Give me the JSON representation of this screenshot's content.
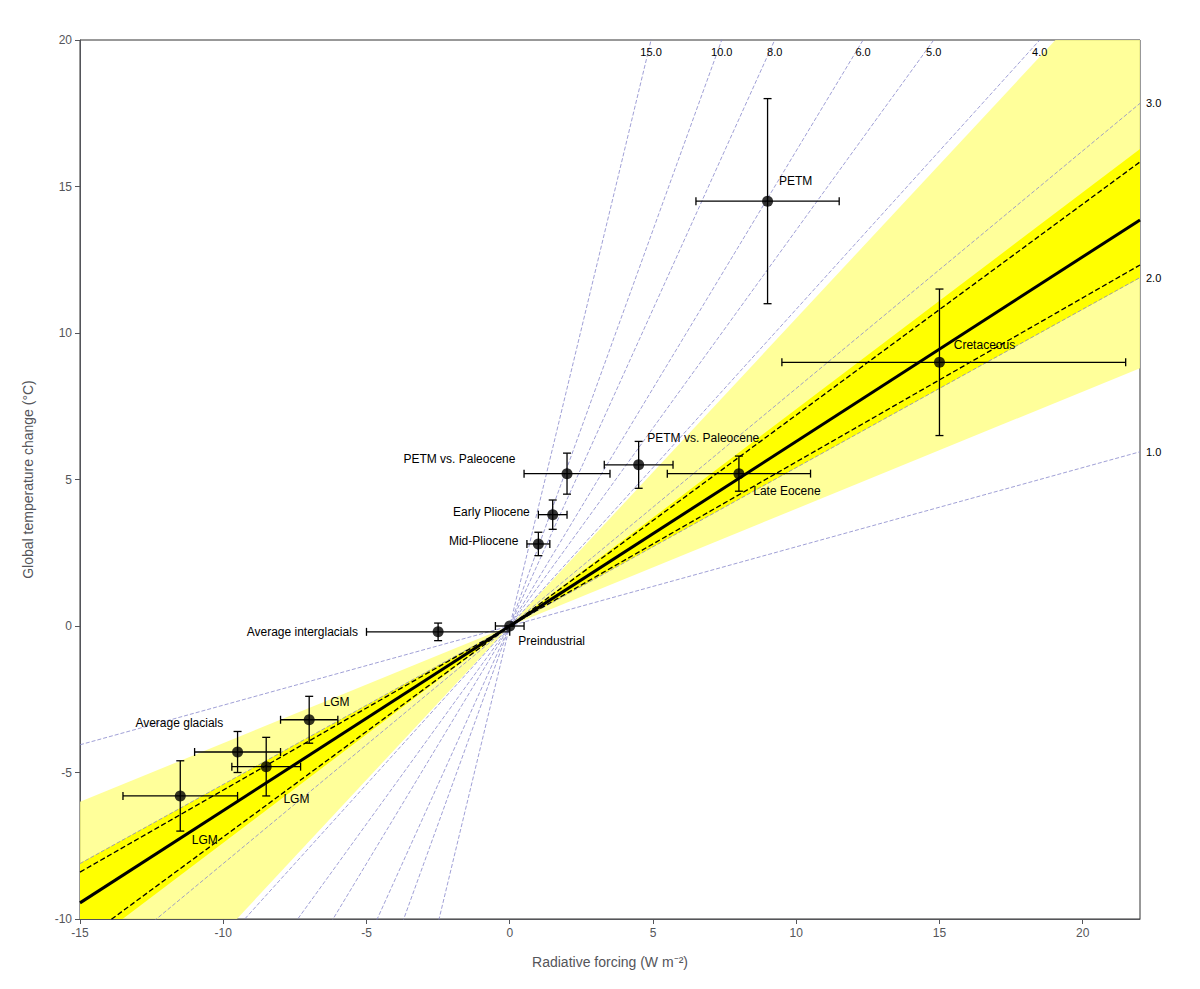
{
  "chart_data": {
    "type": "scatter",
    "xlabel": "Radiative forcing (W m⁻²)",
    "ylabel": "Global temperature change (°C)",
    "xlim": [
      -15,
      22
    ],
    "ylim": [
      -10,
      20
    ],
    "xticks": [
      -15,
      -10,
      -5,
      0,
      5,
      10,
      15,
      20
    ],
    "yticks": [
      -10,
      -5,
      0,
      5,
      10,
      15,
      20
    ],
    "grid": false,
    "marker": "circle",
    "color": "#000000",
    "bands": [
      {
        "lo": 0.4,
        "hi": 1.05,
        "color": "#ffff88"
      },
      {
        "lo": 0.54,
        "hi": 0.74,
        "color": "#ffff00"
      }
    ],
    "forcing_per_doubling": 3.7,
    "sensitivity_color": "#8888cc",
    "sensitivity_lines": [
      {
        "value": 15.0,
        "label": "15.0"
      },
      {
        "value": 10.0,
        "label": "10.0"
      },
      {
        "value": 8.0,
        "label": "8.0"
      },
      {
        "value": 6.0,
        "label": "6.0"
      },
      {
        "value": 5.0,
        "label": "5.0"
      },
      {
        "value": 4.0,
        "label": "4.0"
      },
      {
        "value": 3.0,
        "label": "3.0"
      },
      {
        "value": 2.0,
        "label": "2.0"
      },
      {
        "value": 1.0,
        "label": "1.0"
      }
    ],
    "lines": [
      {
        "slope": 0.56,
        "color": "#000000",
        "line_style": "dashed"
      },
      {
        "slope": 0.72,
        "color": "#000000",
        "line_style": "dashed"
      },
      {
        "slope": 0.63,
        "color": "#000000",
        "line_style": "solid"
      }
    ],
    "points": [
      {
        "x": 9.0,
        "y": 14.5,
        "label": "PETM",
        "xerr_lo": 2.5,
        "xerr_hi": 2.5,
        "yerr_lo": 3.5,
        "yerr_hi": 3.5
      },
      {
        "x": 15.0,
        "y": 9.0,
        "label": "Cretaceous",
        "xerr_lo": 5.5,
        "xerr_hi": 6.5,
        "yerr_lo": 2.5,
        "yerr_hi": 2.5
      },
      {
        "x": 4.5,
        "y": 5.5,
        "label": "PETM vs. Paleocene",
        "xerr_lo": 1.2,
        "xerr_hi": 1.2,
        "yerr_lo": 0.8,
        "yerr_hi": 0.8
      },
      {
        "x": 2.0,
        "y": 5.2,
        "label": "PETM vs. Paleocene",
        "xerr_lo": 1.5,
        "xerr_hi": 1.5,
        "yerr_lo": 0.7,
        "yerr_hi": 0.7
      },
      {
        "x": 8.0,
        "y": 5.2,
        "label": "Late Eocene",
        "xerr_lo": 2.5,
        "xerr_hi": 2.5,
        "yerr_lo": 0.6,
        "yerr_hi": 0.6
      },
      {
        "x": 1.5,
        "y": 3.8,
        "label": "Early Pliocene",
        "xerr_lo": 0.5,
        "xerr_hi": 0.5,
        "yerr_lo": 0.5,
        "yerr_hi": 0.5
      },
      {
        "x": 1.0,
        "y": 2.8,
        "label": "Mid-Pliocene",
        "xerr_lo": 0.4,
        "xerr_hi": 0.4,
        "yerr_lo": 0.4,
        "yerr_hi": 0.4
      },
      {
        "x": -2.5,
        "y": -0.2,
        "label": "Average interglacials",
        "xerr_lo": 2.5,
        "xerr_hi": 2.5,
        "yerr_lo": 0.3,
        "yerr_hi": 0.3
      },
      {
        "x": 0.0,
        "y": 0.0,
        "label": "Preindustrial",
        "xerr_lo": 0.5,
        "xerr_hi": 0.5,
        "yerr_lo": 0.0,
        "yerr_hi": 0.0
      },
      {
        "x": -7.0,
        "y": -3.2,
        "label": "LGM",
        "xerr_lo": 1.0,
        "xerr_hi": 1.0,
        "yerr_lo": 0.8,
        "yerr_hi": 0.8
      },
      {
        "x": -9.5,
        "y": -4.3,
        "label": "Average glacials",
        "xerr_lo": 1.5,
        "xerr_hi": 1.5,
        "yerr_lo": 0.7,
        "yerr_hi": 0.7
      },
      {
        "x": -8.5,
        "y": -4.8,
        "label": "LGM",
        "xerr_lo": 1.2,
        "xerr_hi": 1.2,
        "yerr_lo": 1.0,
        "yerr_hi": 1.0
      },
      {
        "x": -11.5,
        "y": -5.8,
        "label": "LGM",
        "xerr_lo": 2.0,
        "xerr_hi": 2.0,
        "yerr_lo": 1.2,
        "yerr_hi": 1.2
      }
    ]
  }
}
